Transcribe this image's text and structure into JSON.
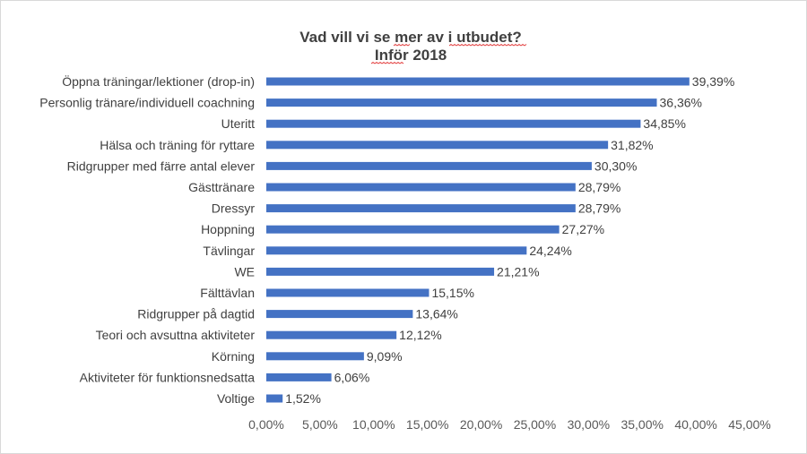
{
  "chart_data": {
    "type": "bar",
    "orientation": "horizontal",
    "title": "Vad vill vi se mer av i utbudet?",
    "subtitle": "Inför 2018",
    "categories": [
      "Öppna träningar/lektioner (drop-in)",
      "Personlig tränare/individuell coachning",
      "Uteritt",
      "Hälsa och träning för ryttare",
      "Ridgrupper med färre antal elever",
      "Gästtränare",
      "Dressyr",
      "Hoppning",
      "Tävlingar",
      "WE",
      "Fälttävlan",
      "Ridgrupper på dagtid",
      "Teori och avsuttna aktiviteter",
      "Körning",
      "Aktiviteter för funktionsnedsatta",
      "Voltige"
    ],
    "values": [
      39.39,
      36.36,
      34.85,
      31.82,
      30.3,
      28.79,
      28.79,
      27.27,
      24.24,
      21.21,
      15.15,
      13.64,
      12.12,
      9.09,
      6.06,
      1.52
    ],
    "value_labels": [
      "39,39%",
      "36,36%",
      "34,85%",
      "31,82%",
      "30,30%",
      "28,79%",
      "28,79%",
      "27,27%",
      "24,24%",
      "21,21%",
      "15,15%",
      "13,64%",
      "12,12%",
      "9,09%",
      "6,06%",
      "1,52%"
    ],
    "xlim": [
      0,
      45
    ],
    "x_ticks": [
      0,
      5,
      10,
      15,
      20,
      25,
      30,
      35,
      40,
      45
    ],
    "x_tick_labels": [
      "0,00%",
      "5,00%",
      "10,00%",
      "15,00%",
      "20,00%",
      "25,00%",
      "30,00%",
      "35,00%",
      "40,00%",
      "45,00%"
    ],
    "xlabel": "",
    "ylabel": "",
    "grid": false,
    "legend": "none",
    "bar_color": "#4472c4"
  }
}
